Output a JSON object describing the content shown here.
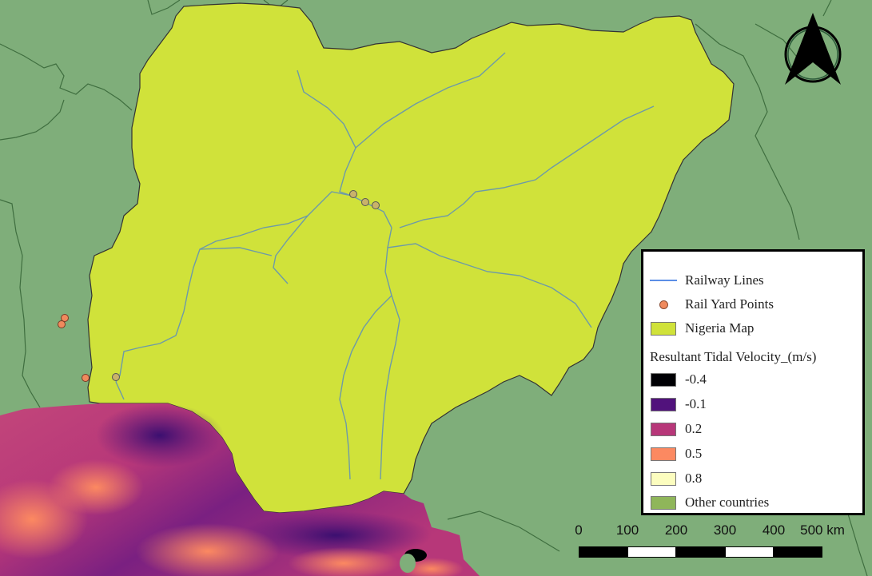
{
  "map": {
    "north_arrow_icon": "north-arrow-icon",
    "colors": {
      "background_countries": "#7fae7a",
      "nigeria_fill": "#d0e23a",
      "railway": "#6d9aa8",
      "rail_yard": "#f08a5d"
    }
  },
  "legend": {
    "items": [
      {
        "label": "Railway Lines",
        "symbol": "line",
        "color": "#5b8ee6"
      },
      {
        "label": "Rail Yard Points",
        "symbol": "point",
        "color": "#f08a5d"
      },
      {
        "label": "Nigeria Map",
        "symbol": "fill",
        "color": "#d0e23a"
      }
    ],
    "velocity_title": "Resultant Tidal Velocity_(m/s)",
    "velocity_classes": [
      {
        "label": "-0.4",
        "color": "#000004"
      },
      {
        "label": "-0.1",
        "color": "#51127c"
      },
      {
        "label": "0.2",
        "color": "#b73779"
      },
      {
        "label": "0.5",
        "color": "#fc8961"
      },
      {
        "label": "0.8",
        "color": "#fcfdbf"
      }
    ],
    "other": {
      "label": "Other countries",
      "color": "#8fb65a"
    }
  },
  "scale_bar": {
    "ticks": [
      "0",
      "100",
      "200",
      "300",
      "400",
      "500 km"
    ]
  }
}
